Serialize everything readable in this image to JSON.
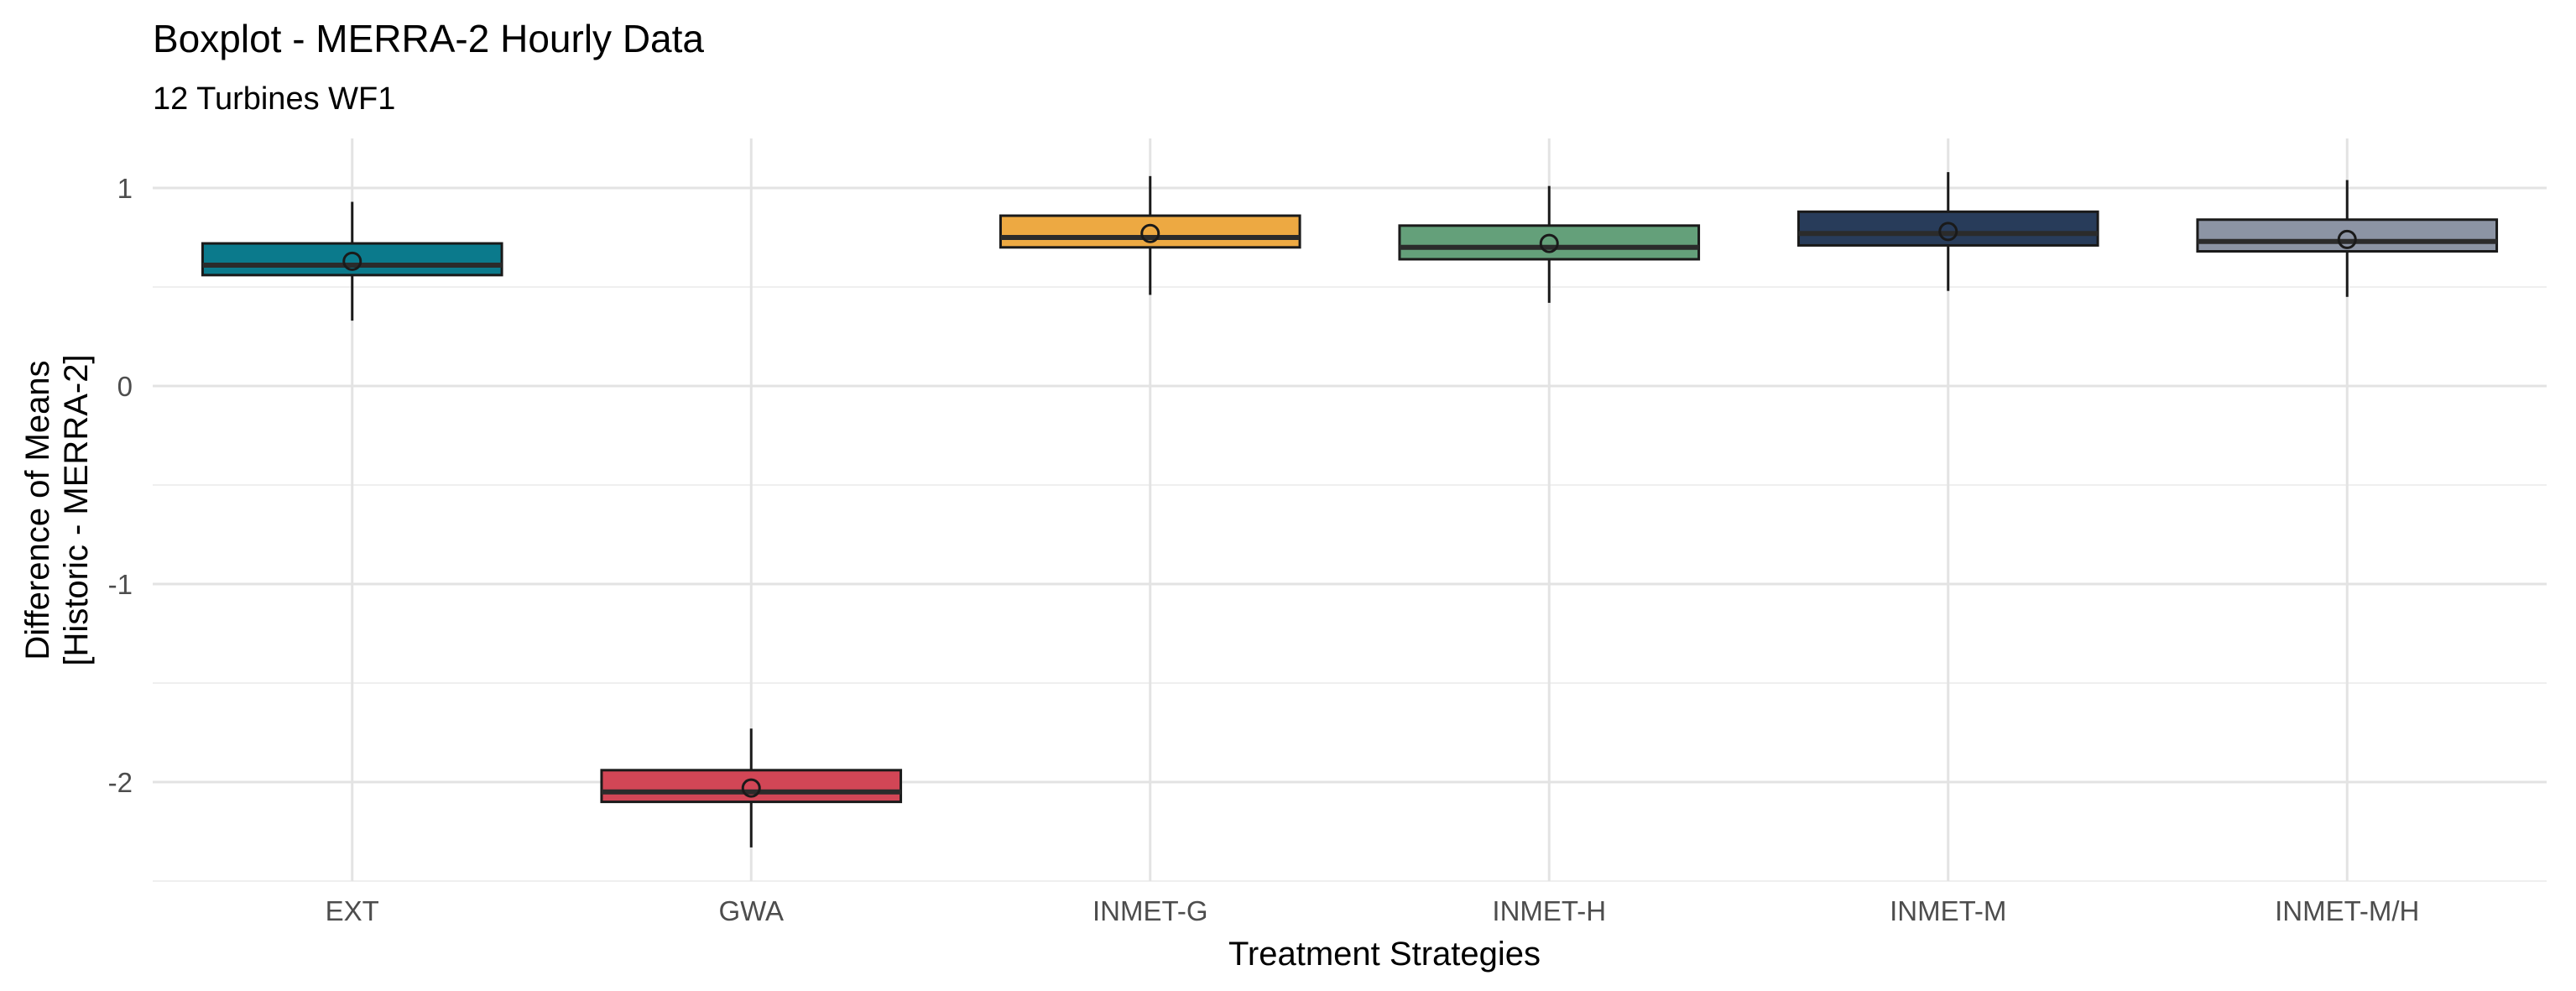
{
  "chart_data": {
    "type": "boxplot",
    "title": "Boxplot - MERRA-2 Hourly Data",
    "subtitle": "12 Turbines WF1",
    "xlabel": "Treatment Strategies",
    "ylabel_lines": [
      "Difference of Means",
      "[Historic - MERRA-2]"
    ],
    "categories": [
      "EXT",
      "GWA",
      "INMET-G",
      "INMET-H",
      "INMET-M",
      "INMET-M/H"
    ],
    "yticks": [
      "1",
      "0",
      "-1",
      "-2"
    ],
    "ytick_values": [
      1,
      0,
      -1,
      -2
    ],
    "ylim": [
      -2.5,
      1.25
    ],
    "grid": true,
    "boxes": [
      {
        "category": "EXT",
        "whisker_low": 0.33,
        "q1": 0.56,
        "median": 0.61,
        "q3": 0.72,
        "whisker_high": 0.93,
        "mean": 0.63,
        "color": "#0b7a8c"
      },
      {
        "category": "GWA",
        "whisker_low": -2.33,
        "q1": -2.1,
        "median": -2.05,
        "q3": -1.94,
        "whisker_high": -1.73,
        "mean": -2.03,
        "color": "#d24656"
      },
      {
        "category": "INMET-G",
        "whisker_low": 0.46,
        "q1": 0.7,
        "median": 0.75,
        "q3": 0.86,
        "whisker_high": 1.06,
        "mean": 0.77,
        "color": "#eda942"
      },
      {
        "category": "INMET-H",
        "whisker_low": 0.42,
        "q1": 0.64,
        "median": 0.7,
        "q3": 0.81,
        "whisker_high": 1.01,
        "mean": 0.72,
        "color": "#64a07a"
      },
      {
        "category": "INMET-M",
        "whisker_low": 0.48,
        "q1": 0.71,
        "median": 0.77,
        "q3": 0.88,
        "whisker_high": 1.08,
        "mean": 0.78,
        "color": "#283c5a"
      },
      {
        "category": "INMET-M/H",
        "whisker_low": 0.45,
        "q1": 0.68,
        "median": 0.73,
        "q3": 0.84,
        "whisker_high": 1.04,
        "mean": 0.74,
        "color": "#8c94a4"
      }
    ]
  }
}
